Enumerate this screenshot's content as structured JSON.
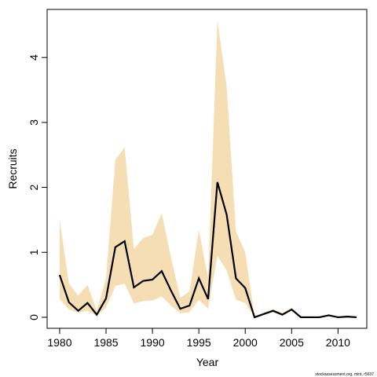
{
  "chart_data": {
    "type": "line",
    "x_label": "Year",
    "y_label": "Recruits",
    "credit": "stockassessment.org, mint, r5637",
    "x": [
      1980,
      1981,
      1982,
      1983,
      1984,
      1985,
      1986,
      1987,
      1988,
      1989,
      1990,
      1991,
      1992,
      1993,
      1994,
      1995,
      1996,
      1997,
      1998,
      1999,
      2000,
      2001,
      2002,
      2003,
      2004,
      2005,
      2006,
      2007,
      2008,
      2009,
      2010,
      2011,
      2012
    ],
    "values": [
      0.65,
      0.23,
      0.1,
      0.22,
      0.04,
      0.29,
      1.08,
      1.17,
      0.46,
      0.56,
      0.58,
      0.71,
      0.41,
      0.13,
      0.18,
      0.6,
      0.28,
      2.08,
      1.58,
      0.6,
      0.45,
      0.0,
      0.05,
      0.1,
      0.04,
      0.12,
      0.0,
      0.0,
      0.0,
      0.03,
      0.0,
      0.01,
      0.0
    ],
    "upper": [
      1.5,
      0.52,
      0.33,
      0.5,
      0.1,
      0.6,
      2.42,
      2.62,
      1.05,
      1.22,
      1.27,
      1.6,
      0.92,
      0.3,
      0.4,
      1.35,
      0.6,
      4.57,
      3.55,
      1.32,
      1.0,
      0.01,
      0.07,
      0.13,
      0.06,
      0.15,
      0.01,
      0.01,
      0.01,
      0.04,
      0.01,
      0.02,
      0.01
    ],
    "lower": [
      0.28,
      0.12,
      0.07,
      0.1,
      0.02,
      0.15,
      0.48,
      0.52,
      0.21,
      0.25,
      0.26,
      0.32,
      0.18,
      0.06,
      0.08,
      0.27,
      0.13,
      0.95,
      0.72,
      0.27,
      0.22,
      0.0,
      0.04,
      0.08,
      0.03,
      0.1,
      0.0,
      0.0,
      0.0,
      0.02,
      0.0,
      0.0,
      0.0
    ],
    "color": "#000000",
    "band_color": "#f5deb3",
    "xlim": [
      1978.65,
      2013.1
    ],
    "xticks": [
      1980,
      1985,
      1990,
      1995,
      2000,
      2005,
      2010
    ],
    "ylim": [
      -0.17,
      4.74
    ],
    "yticks": [
      0,
      1,
      2,
      3,
      4
    ],
    "grid": false
  }
}
